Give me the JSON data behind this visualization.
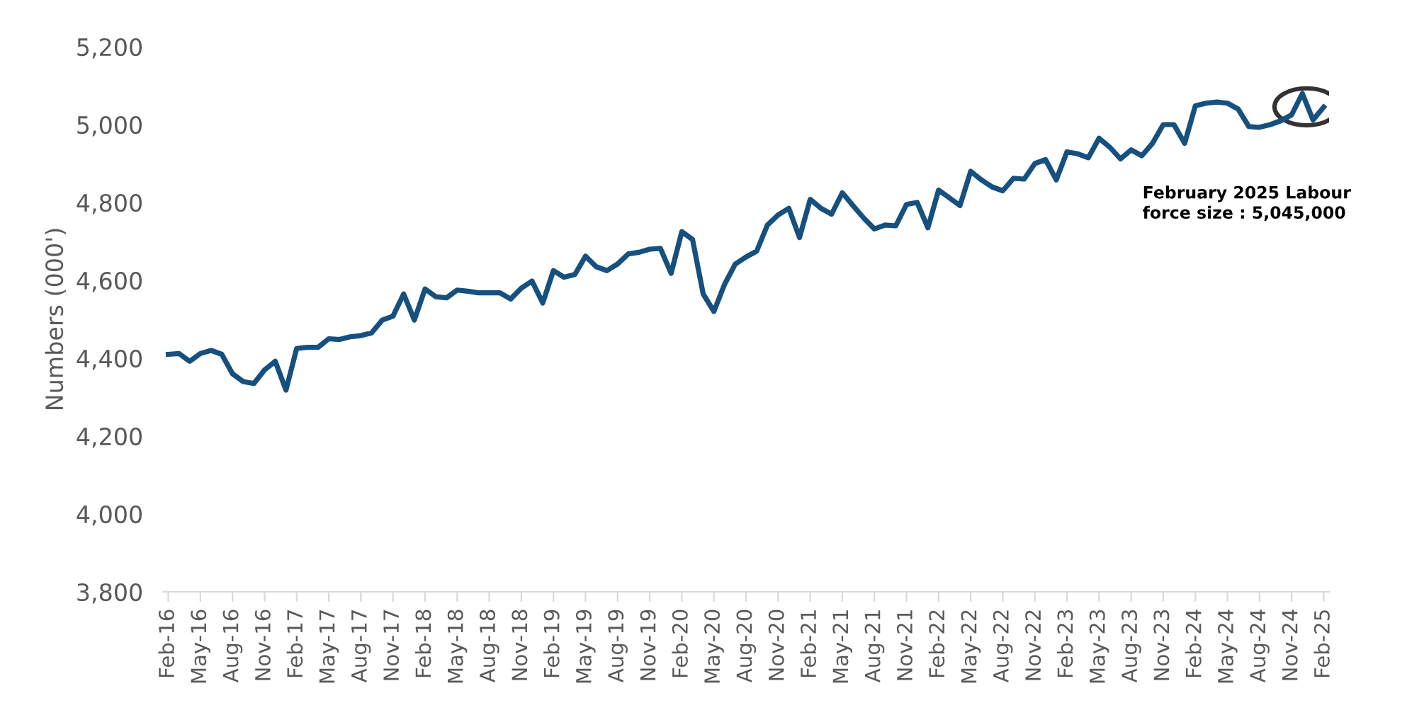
{
  "chart_data": {
    "type": "line",
    "ylabel": "Numbers (000')",
    "categories": [
      "Feb-16",
      null,
      null,
      "May-16",
      null,
      null,
      "Aug-16",
      null,
      null,
      "Nov-16",
      null,
      null,
      "Feb-17",
      null,
      null,
      "May-17",
      null,
      null,
      "Aug-17",
      null,
      null,
      "Nov-17",
      null,
      null,
      "Feb-18",
      null,
      null,
      "May-18",
      null,
      null,
      "Aug-18",
      null,
      null,
      "Nov-18",
      null,
      null,
      "Feb-19",
      null,
      null,
      "May-19",
      null,
      null,
      "Aug-19",
      null,
      null,
      "Nov-19",
      null,
      null,
      "Feb-20",
      null,
      null,
      "May-20",
      null,
      null,
      "Aug-20",
      null,
      null,
      "Nov-20",
      null,
      null,
      "Feb-21",
      null,
      null,
      "May-21",
      null,
      null,
      "Aug-21",
      null,
      null,
      "Nov-21",
      null,
      null,
      "Feb-22",
      null,
      null,
      "May-22",
      null,
      null,
      "Aug-22",
      null,
      null,
      "Nov-22",
      null,
      null,
      "Feb-23",
      null,
      null,
      "May-23",
      null,
      null,
      "Aug-23",
      null,
      null,
      "Nov-23",
      null,
      null,
      "Feb-24",
      null,
      null,
      "May-24",
      null,
      null,
      "Aug-24",
      null,
      null,
      "Nov-24",
      null,
      null,
      "Feb-25"
    ],
    "series": [
      {
        "color": "#15507f",
        "values": [
          4410,
          4412,
          4392,
          4412,
          4420,
          4410,
          4360,
          4340,
          4335,
          4370,
          4392,
          4318,
          4425,
          4428,
          4428,
          4450,
          4448,
          4455,
          4458,
          4465,
          4498,
          4508,
          4565,
          4498,
          4578,
          4558,
          4555,
          4575,
          4572,
          4568,
          4568,
          4568,
          4552,
          4580,
          4598,
          4542,
          4625,
          4608,
          4615,
          4662,
          4635,
          4625,
          4642,
          4668,
          4672,
          4680,
          4682,
          4618,
          4725,
          4705,
          4565,
          4520,
          4590,
          4642,
          4660,
          4675,
          4742,
          4768,
          4785,
          4710,
          4808,
          4785,
          4770,
          4825,
          4792,
          4760,
          4732,
          4742,
          4740,
          4795,
          4800,
          4735,
          4832,
          4812,
          4792,
          4880,
          4858,
          4840,
          4830,
          4862,
          4860,
          4900,
          4910,
          4858,
          4930,
          4925,
          4915,
          4965,
          4942,
          4912,
          4935,
          4920,
          4952,
          5000,
          5000,
          4952,
          5048,
          5055,
          5058,
          5055,
          5040,
          4995,
          4993,
          5000,
          5010,
          5025,
          5080,
          5012,
          5045
        ]
      }
    ],
    "ylim": [
      3800,
      5200
    ],
    "yticks": [
      {
        "value": 3800,
        "label": "3,800"
      },
      {
        "value": 4000,
        "label": "4,000"
      },
      {
        "value": 4200,
        "label": "4,200"
      },
      {
        "value": 4400,
        "label": "4,400"
      },
      {
        "value": 4600,
        "label": "4,600"
      },
      {
        "value": 4800,
        "label": "4,800"
      },
      {
        "value": 5000,
        "label": "5,000"
      },
      {
        "value": 5200,
        "label": "5,200"
      }
    ],
    "grid": false,
    "legend": false,
    "marker": "none",
    "line_style": "solid",
    "annotations": [
      "February 2025 Labour\nforce size : 5,045,000"
    ]
  }
}
